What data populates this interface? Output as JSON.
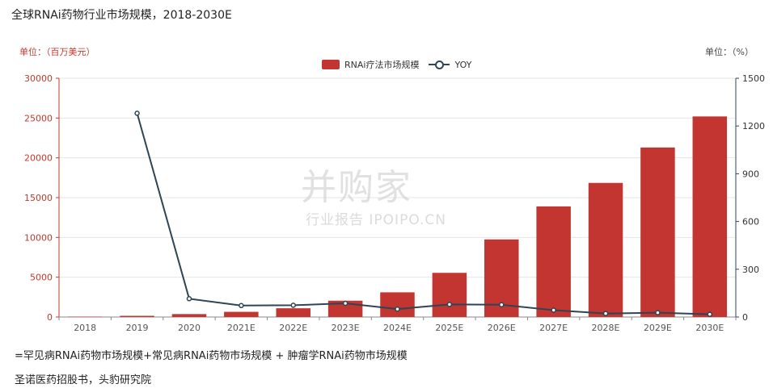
{
  "title": "全球RNAi药物行业市场规模，2018-2030E",
  "unit_left": "单位：（百万美元）",
  "unit_right": "单位：（%）",
  "note": "=罕见病RNAi药物市场规模+常见病RNAi药物市场规模 + 肿瘤学RNAi药物市场规模",
  "source": "圣诺医药招股书，头豹研究院",
  "watermark": {
    "main": "并购家",
    "sub": "行业报告 IPOIPO.CN"
  },
  "colors": {
    "bar": "#c23531",
    "line": "#2f4554",
    "left_axis": "#c0392b",
    "right_axis": "#2f4554",
    "grid": "#e6e6e6"
  },
  "chart_data": {
    "type": "bar",
    "categories": [
      "2018",
      "2019",
      "2020",
      "2021E",
      "2022E",
      "2023E",
      "2024E",
      "2025E",
      "2026E",
      "2027E",
      "2028E",
      "2029E",
      "2030E"
    ],
    "series": [
      {
        "name": "RNAi疗法市场规模",
        "type": "bar",
        "axis": "left",
        "values": [
          50,
          150,
          370,
          650,
          1100,
          2050,
          3100,
          5550,
          9750,
          13900,
          16850,
          21300,
          25200
        ]
      },
      {
        "name": "YOY",
        "type": "line",
        "axis": "right",
        "values": [
          null,
          1280,
          115,
          72,
          74,
          86,
          50,
          79,
          77,
          43,
          22,
          27,
          17
        ]
      }
    ],
    "y_left": {
      "min": 0,
      "max": 30000,
      "ticks": [
        0,
        5000,
        10000,
        15000,
        20000,
        25000,
        30000
      ]
    },
    "y_right": {
      "min": 0,
      "max": 1500,
      "ticks": [
        0,
        300,
        600,
        900,
        1200,
        1500
      ]
    },
    "legend_position": "top-center",
    "grid": true
  }
}
